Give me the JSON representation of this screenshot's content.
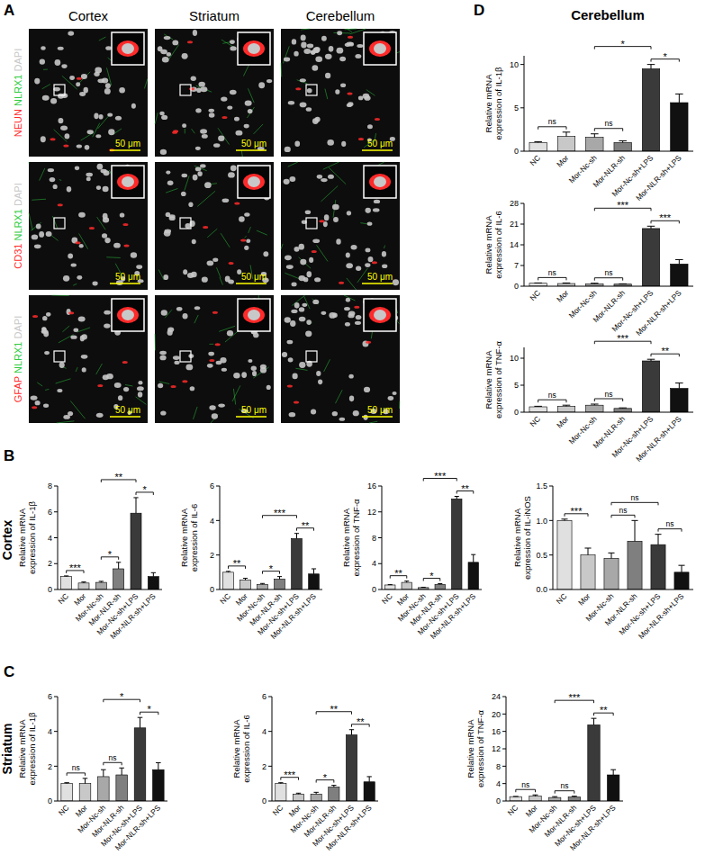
{
  "figure": {
    "panel_labels": [
      "A",
      "B",
      "C",
      "D"
    ],
    "region_labels": {
      "B": "Cortex",
      "C": "Striatum",
      "D": "Cerebellum"
    },
    "panel_a": {
      "columns": [
        "Cortex",
        "Striatum",
        "Cerebellum"
      ],
      "rows": [
        [
          {
            "text": "NEUN",
            "color": "#ff2a2a"
          },
          {
            "text": "NLRX1",
            "color": "#2ecc40"
          },
          {
            "text": "DAPI",
            "color": "#c8c8c8"
          }
        ],
        [
          {
            "text": "CD31",
            "color": "#ff2a2a"
          },
          {
            "text": "NLRX1",
            "color": "#2ecc40"
          },
          {
            "text": "DAPI",
            "color": "#c8c8c8"
          }
        ],
        [
          {
            "text": "GFAP",
            "color": "#ff2a2a"
          },
          {
            "text": "NLRX1",
            "color": "#2ecc40"
          },
          {
            "text": "DAPI",
            "color": "#c8c8c8"
          }
        ]
      ],
      "scale_bar": "50 μm"
    }
  },
  "chart_data": [
    {
      "type": "bar",
      "ylabel": [
        "Relative mRNA",
        "expression of IL-1β"
      ],
      "categories": [
        "NC",
        "Mor",
        "Mor-Nc-sh",
        "Mor-NLR-sh",
        "Mor-Nc-sh+LPS",
        "Mor-NLR-sh+LPS"
      ],
      "values": [
        1.0,
        1.7,
        1.6,
        1.0,
        9.5,
        5.6
      ],
      "errors": [
        0.1,
        0.5,
        0.4,
        0.2,
        0.5,
        1.0
      ],
      "colors": [
        "#e0e0e0",
        "#c8c8c8",
        "#a8a8a8",
        "#7f7f7f",
        "#3a3a3a",
        "#111111"
      ],
      "ylim": [
        0,
        11
      ],
      "yticks": [
        0,
        5,
        10
      ],
      "annotations": [
        {
          "between": [
            "NC",
            "Mor"
          ],
          "label": "ns"
        },
        {
          "between": [
            "Mor-Nc-sh",
            "Mor-NLR-sh"
          ],
          "label": "ns"
        },
        {
          "between": [
            "Mor-Nc-sh+LPS",
            "Mor-NLR-sh+LPS"
          ],
          "label": "*"
        },
        {
          "between": [
            "Mor-Nc-sh",
            "Mor-Nc-sh+LPS"
          ],
          "label": "*"
        }
      ]
    },
    {
      "type": "bar",
      "ylabel": [
        "Relative mRNA",
        "expression of IL-6"
      ],
      "categories": [
        "NC",
        "Mor",
        "Mor-Nc-sh",
        "Mor-NLR-sh",
        "Mor-Nc-sh+LPS",
        "Mor-NLR-sh+LPS"
      ],
      "values": [
        1.0,
        0.9,
        0.8,
        0.7,
        19.5,
        7.5
      ],
      "errors": [
        0.1,
        0.2,
        0.2,
        0.1,
        0.8,
        1.5
      ],
      "colors": [
        "#e0e0e0",
        "#c8c8c8",
        "#a8a8a8",
        "#7f7f7f",
        "#3a3a3a",
        "#111111"
      ],
      "ylim": [
        0,
        28
      ],
      "yticks": [
        0,
        7,
        14,
        21,
        28
      ],
      "annotations": [
        {
          "between": [
            "NC",
            "Mor"
          ],
          "label": "ns"
        },
        {
          "between": [
            "Mor-Nc-sh",
            "Mor-NLR-sh"
          ],
          "label": "ns"
        },
        {
          "between": [
            "Mor-Nc-sh+LPS",
            "Mor-NLR-sh+LPS"
          ],
          "label": "***"
        },
        {
          "between": [
            "Mor-Nc-sh",
            "Mor-Nc-sh+LPS"
          ],
          "label": "***"
        }
      ]
    },
    {
      "type": "bar",
      "ylabel": [
        "Relative mRNA",
        "expression of TNF-α"
      ],
      "categories": [
        "NC",
        "Mor",
        "Mor-Nc-sh",
        "Mor-NLR-sh",
        "Mor-Nc-sh+LPS",
        "Mor-NLR-sh+LPS"
      ],
      "values": [
        1.0,
        1.1,
        1.3,
        0.7,
        9.5,
        4.4
      ],
      "errors": [
        0.1,
        0.2,
        0.2,
        0.1,
        0.3,
        1.0
      ],
      "colors": [
        "#e0e0e0",
        "#c8c8c8",
        "#a8a8a8",
        "#7f7f7f",
        "#3a3a3a",
        "#111111"
      ],
      "ylim": [
        0,
        12
      ],
      "yticks": [
        0,
        5,
        10
      ],
      "annotations": [
        {
          "between": [
            "NC",
            "Mor"
          ],
          "label": "ns"
        },
        {
          "between": [
            "Mor-Nc-sh",
            "Mor-NLR-sh"
          ],
          "label": "ns"
        },
        {
          "between": [
            "Mor-Nc-sh+LPS",
            "Mor-NLR-sh+LPS"
          ],
          "label": "**"
        },
        {
          "between": [
            "Mor-Nc-sh",
            "Mor-Nc-sh+LPS"
          ],
          "label": "***"
        }
      ]
    },
    {
      "type": "bar",
      "ylabel": [
        "Relative mRNA",
        "expression of IL-1β"
      ],
      "categories": [
        "NC",
        "Mor",
        "Mor-Nc-sh",
        "Mor-NLR-sh",
        "Mor-Nc-sh+LPS",
        "Mor-NLR-sh+LPS"
      ],
      "values": [
        1.0,
        0.5,
        0.55,
        1.6,
        5.9,
        1.0
      ],
      "errors": [
        0.05,
        0.08,
        0.08,
        0.5,
        1.2,
        0.3
      ],
      "colors": [
        "#e0e0e0",
        "#c8c8c8",
        "#a8a8a8",
        "#7f7f7f",
        "#3a3a3a",
        "#111111"
      ],
      "ylim": [
        0,
        8
      ],
      "yticks": [
        0,
        2,
        4,
        6,
        8
      ],
      "annotations": [
        {
          "between": [
            "NC",
            "Mor"
          ],
          "label": "***"
        },
        {
          "between": [
            "Mor-Nc-sh",
            "Mor-NLR-sh"
          ],
          "label": "*"
        },
        {
          "between": [
            "Mor-Nc-sh+LPS",
            "Mor-NLR-sh+LPS"
          ],
          "label": "*"
        },
        {
          "between": [
            "Mor-Nc-sh",
            "Mor-Nc-sh+LPS"
          ],
          "label": "**"
        }
      ]
    },
    {
      "type": "bar",
      "ylabel": [
        "Relative mRNA",
        "expression of IL-6"
      ],
      "categories": [
        "NC",
        "Mor",
        "Mor-Nc-sh",
        "Mor-NLR-sh",
        "Mor-Nc-sh+LPS",
        "Mor-NLR-sh+LPS"
      ],
      "values": [
        1.0,
        0.55,
        0.3,
        0.6,
        2.95,
        0.9
      ],
      "errors": [
        0.05,
        0.1,
        0.05,
        0.15,
        0.3,
        0.3
      ],
      "colors": [
        "#e0e0e0",
        "#c8c8c8",
        "#a8a8a8",
        "#7f7f7f",
        "#3a3a3a",
        "#111111"
      ],
      "ylim": [
        0,
        6
      ],
      "yticks": [
        0,
        2,
        4,
        6
      ],
      "annotations": [
        {
          "between": [
            "NC",
            "Mor"
          ],
          "label": "**"
        },
        {
          "between": [
            "Mor-Nc-sh",
            "Mor-NLR-sh"
          ],
          "label": "*"
        },
        {
          "between": [
            "Mor-Nc-sh+LPS",
            "Mor-NLR-sh+LPS"
          ],
          "label": "**"
        },
        {
          "between": [
            "Mor-Nc-sh",
            "Mor-Nc-sh+LPS"
          ],
          "label": "***"
        }
      ]
    },
    {
      "type": "bar",
      "ylabel": [
        "Relative mRNA",
        "expression of TNF-α"
      ],
      "categories": [
        "NC",
        "Mor",
        "Mor-Nc-sh",
        "Mor-NLR-sh",
        "Mor-Nc-sh+LPS",
        "Mor-NLR-sh+LPS"
      ],
      "values": [
        0.7,
        1.1,
        0.3,
        0.8,
        14.0,
        4.2
      ],
      "errors": [
        0.05,
        0.2,
        0.05,
        0.1,
        0.4,
        1.2
      ],
      "colors": [
        "#e0e0e0",
        "#c8c8c8",
        "#a8a8a8",
        "#7f7f7f",
        "#3a3a3a",
        "#111111"
      ],
      "ylim": [
        0,
        16
      ],
      "yticks": [
        0,
        4,
        8,
        12,
        16
      ],
      "annotations": [
        {
          "between": [
            "NC",
            "Mor"
          ],
          "label": "**"
        },
        {
          "between": [
            "Mor-Nc-sh",
            "Mor-NLR-sh"
          ],
          "label": "*"
        },
        {
          "between": [
            "Mor-Nc-sh+LPS",
            "Mor-NLR-sh+LPS"
          ],
          "label": "**"
        },
        {
          "between": [
            "Mor-Nc-sh",
            "Mor-Nc-sh+LPS"
          ],
          "label": "***"
        }
      ]
    },
    {
      "type": "bar",
      "ylabel": [
        "Relative mRNA",
        "expression of IL-iNOS"
      ],
      "categories": [
        "NC",
        "Mor",
        "Mor-Nc-sh",
        "Mor-NLR-sh",
        "Mor-Nc-sh+LPS",
        "Mor-NLR-sh+LPS"
      ],
      "values": [
        1.0,
        0.5,
        0.45,
        0.7,
        0.65,
        0.25
      ],
      "errors": [
        0.02,
        0.1,
        0.08,
        0.3,
        0.15,
        0.1
      ],
      "colors": [
        "#e0e0e0",
        "#c8c8c8",
        "#a8a8a8",
        "#7f7f7f",
        "#3a3a3a",
        "#111111"
      ],
      "ylim": [
        0,
        1.5
      ],
      "yticks": [
        {
          "value": 0,
          "label": "0.0"
        },
        0.5,
        {
          "value": 1,
          "label": "1.0"
        },
        1.5
      ],
      "annotations": [
        {
          "between": [
            "NC",
            "Mor"
          ],
          "label": "***"
        },
        {
          "between": [
            "Mor-Nc-sh",
            "Mor-NLR-sh"
          ],
          "label": "ns"
        },
        {
          "between": [
            "Mor-Nc-sh+LPS",
            "Mor-NLR-sh+LPS"
          ],
          "label": "ns"
        },
        {
          "between": [
            "Mor-Nc-sh",
            "Mor-Nc-sh+LPS"
          ],
          "label": "ns"
        }
      ]
    },
    {
      "type": "bar",
      "ylabel": [
        "Relative mRNA",
        "expression of IL-1β"
      ],
      "categories": [
        "NC",
        "Mor",
        "Mor-Nc-sh",
        "Mor-NLR-sh",
        "Mor-Nc-sh+LPS",
        "Mor-NLR-sh+LPS"
      ],
      "values": [
        1.0,
        1.0,
        1.4,
        1.5,
        4.2,
        1.8
      ],
      "errors": [
        0.05,
        0.3,
        0.4,
        0.4,
        0.6,
        0.4
      ],
      "colors": [
        "#e0e0e0",
        "#c8c8c8",
        "#a8a8a8",
        "#7f7f7f",
        "#3a3a3a",
        "#111111"
      ],
      "ylim": [
        0,
        6
      ],
      "yticks": [
        0,
        2,
        4,
        6
      ],
      "annotations": [
        {
          "between": [
            "NC",
            "Mor"
          ],
          "label": "ns"
        },
        {
          "between": [
            "Mor-Nc-sh",
            "Mor-NLR-sh"
          ],
          "label": "ns"
        },
        {
          "between": [
            "Mor-Nc-sh+LPS",
            "Mor-NLR-sh+LPS"
          ],
          "label": "*"
        },
        {
          "between": [
            "Mor-Nc-sh",
            "Mor-Nc-sh+LPS"
          ],
          "label": "*"
        }
      ]
    },
    {
      "type": "bar",
      "ylabel": [
        "Relative mRNA",
        "expression of IL-6"
      ],
      "categories": [
        "NC",
        "Mor",
        "Mor-Nc-sh",
        "Mor-NLR-sh",
        "Mor-Nc-sh+LPS",
        "Mor-NLR-sh+LPS"
      ],
      "values": [
        1.0,
        0.4,
        0.4,
        0.8,
        3.8,
        1.1
      ],
      "errors": [
        0.05,
        0.05,
        0.1,
        0.1,
        0.3,
        0.3
      ],
      "colors": [
        "#e0e0e0",
        "#c8c8c8",
        "#a8a8a8",
        "#7f7f7f",
        "#3a3a3a",
        "#111111"
      ],
      "ylim": [
        0,
        6
      ],
      "yticks": [
        0,
        2,
        4,
        6
      ],
      "annotations": [
        {
          "between": [
            "NC",
            "Mor"
          ],
          "label": "***"
        },
        {
          "between": [
            "Mor-Nc-sh",
            "Mor-NLR-sh"
          ],
          "label": "*"
        },
        {
          "between": [
            "Mor-Nc-sh+LPS",
            "Mor-NLR-sh+LPS"
          ],
          "label": "**"
        },
        {
          "between": [
            "Mor-Nc-sh",
            "Mor-Nc-sh+LPS"
          ],
          "label": "**"
        }
      ]
    },
    {
      "type": "bar",
      "ylabel": [
        "Relative mRNA",
        "expression of TNF-α"
      ],
      "categories": [
        "NC",
        "Mor",
        "Mor-Nc-sh",
        "Mor-NLR-sh",
        "Mor-Nc-sh+LPS",
        "Mor-NLR-sh+LPS"
      ],
      "values": [
        1.0,
        1.1,
        0.8,
        0.9,
        17.5,
        6.0
      ],
      "errors": [
        0.05,
        0.3,
        0.2,
        0.2,
        1.5,
        1.2
      ],
      "colors": [
        "#e0e0e0",
        "#c8c8c8",
        "#a8a8a8",
        "#7f7f7f",
        "#3a3a3a",
        "#111111"
      ],
      "ylim": [
        0,
        24
      ],
      "yticks": [
        0,
        4,
        8,
        12,
        16,
        20,
        24
      ],
      "annotations": [
        {
          "between": [
            "NC",
            "Mor"
          ],
          "label": "ns"
        },
        {
          "between": [
            "Mor-Nc-sh",
            "Mor-NLR-sh"
          ],
          "label": "ns"
        },
        {
          "between": [
            "Mor-Nc-sh+LPS",
            "Mor-NLR-sh+LPS"
          ],
          "label": "**"
        },
        {
          "between": [
            "Mor-Nc-sh",
            "Mor-Nc-sh+LPS"
          ],
          "label": "***"
        }
      ]
    }
  ]
}
